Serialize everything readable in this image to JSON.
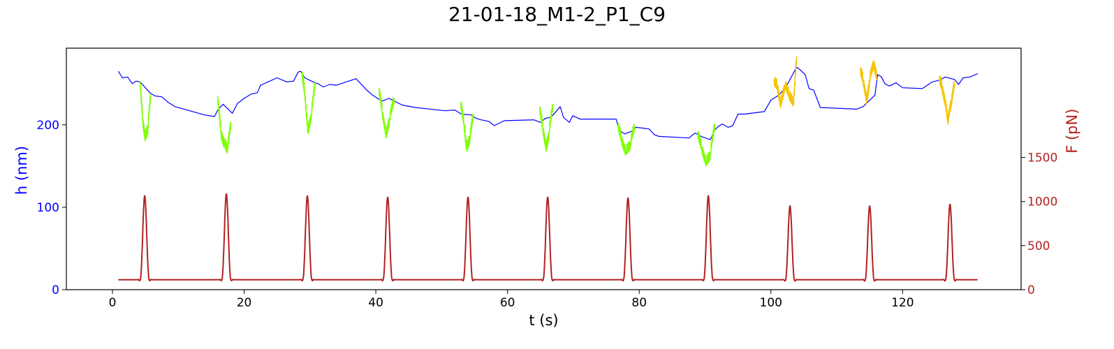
{
  "chart_data": {
    "type": "line",
    "title": "21-01-18_M1-2_P1_C9",
    "xlabel": "t (s)",
    "ylabel_left": "h (nm)",
    "ylabel_right": "F (pN)",
    "xlim": [
      -7,
      138
    ],
    "ylim_left": [
      0,
      293
    ],
    "ylim_right": [
      0,
      2740
    ],
    "x_ticks": [
      0,
      20,
      40,
      60,
      80,
      100,
      120
    ],
    "y_ticks_left": [
      0,
      100,
      200
    ],
    "y_ticks_right": [
      0,
      500,
      1000,
      1500
    ],
    "grid": false,
    "colors": {
      "height": "#0000ff",
      "height_green": "#7fff00",
      "height_yellow": "#f5c400",
      "force": "#b22222",
      "left_axis": "#0000ff",
      "right_axis": "#b22222"
    },
    "series": [
      {
        "key": "h_blue",
        "color": "#0000ff",
        "x": [
          0.9,
          1.5,
          2.3,
          3.0,
          3.6,
          4.2,
          5.8,
          6.5,
          7.5,
          8.5,
          9.5,
          14.0,
          15.5,
          16.0,
          16.8,
          18.2,
          19.0,
          20.0,
          21.0,
          22.0,
          22.5,
          25.0,
          26.5,
          27.5,
          28.2,
          28.6,
          29.2,
          30.5,
          31.2,
          32.0,
          33.0,
          34.0,
          37.0,
          38.5,
          39.5,
          40.5,
          41.0,
          42.0,
          42.8,
          44.0,
          46.0,
          50.5,
          52.0,
          53.0,
          54.5,
          55.2,
          56.0,
          57.2,
          58.0,
          59.5,
          64.0,
          65.0,
          65.8,
          66.6,
          68.0,
          68.5,
          69.4,
          69.9,
          71.0,
          76.5,
          77.0,
          77.8,
          78.8,
          79.5,
          80.5,
          81.5,
          82.3,
          83.0,
          87.6,
          88.0,
          88.5,
          89.4,
          90.8,
          91.5,
          92.0,
          92.6,
          93.5,
          94.2,
          95.0,
          96.0,
          99.0,
          100.0,
          101.2,
          102.3,
          103.9,
          104.4,
          105.2,
          105.8,
          106.5,
          107.5,
          113.0,
          114.0,
          115.8,
          116.2,
          116.8,
          117.3,
          118.0,
          119.0,
          120.0,
          123.0,
          124.5,
          125.5,
          126.5,
          127.9,
          128.5,
          129.2,
          130.2,
          131.4
        ],
        "y": [
          265,
          257,
          258,
          250,
          253,
          252,
          238,
          235,
          234,
          227,
          222,
          212,
          210,
          218,
          225,
          214,
          226,
          232,
          237,
          239,
          248,
          257,
          252,
          253,
          264,
          265,
          257,
          252,
          250,
          246,
          249,
          248,
          256,
          243,
          236,
          231,
          229,
          232,
          229,
          224,
          221,
          217,
          218,
          213,
          212,
          208,
          206,
          204,
          199,
          205,
          206,
          203,
          208,
          209,
          222,
          209,
          203,
          211,
          207,
          207,
          193,
          189,
          192,
          197,
          196,
          195,
          188,
          186,
          184,
          187,
          190,
          186,
          182,
          194,
          198,
          201,
          197,
          199,
          213,
          213,
          216,
          230,
          236,
          246,
          270,
          267,
          261,
          244,
          242,
          221,
          219,
          222,
          236,
          261,
          258,
          250,
          247,
          251,
          245,
          244,
          252,
          254,
          258,
          255,
          249,
          257,
          258,
          262
        ]
      },
      {
        "key": "h_green",
        "color": "#7fff00",
        "segments": [
          {
            "x": [
              4.2,
              4.6,
              5.0,
              5.4,
              5.8
            ],
            "y": [
              253,
              205,
              185,
              197,
              237
            ]
          },
          {
            "x": [
              16.0,
              16.5,
              17.0,
              17.5,
              18.0
            ],
            "y": [
              235,
              190,
              178,
              172,
              203
            ]
          },
          {
            "x": [
              28.8,
              29.2,
              29.7,
              30.2,
              30.8
            ],
            "y": [
              264,
              240,
              192,
              212,
              252
            ]
          },
          {
            "x": [
              40.5,
              41.0,
              41.6,
              42.1,
              42.8
            ],
            "y": [
              245,
              215,
              188,
              208,
              232
            ]
          },
          {
            "x": [
              52.9,
              53.4,
              53.8,
              54.3,
              54.8
            ],
            "y": [
              228,
              201,
              172,
              185,
              212
            ]
          },
          {
            "x": [
              64.9,
              65.4,
              65.9,
              66.3,
              66.9
            ],
            "y": [
              222,
              195,
              172,
              190,
              225
            ]
          },
          {
            "x": [
              76.8,
              77.3,
              78.0,
              78.7,
              79.3
            ],
            "y": [
              201,
              183,
              168,
              178,
              199
            ]
          },
          {
            "x": [
              88.9,
              89.5,
              90.2,
              90.8,
              91.5
            ],
            "y": [
              192,
              172,
              155,
              165,
              201
            ]
          }
        ]
      },
      {
        "key": "h_yellow",
        "color": "#f5c400",
        "segments": [
          {
            "x": [
              100.5,
              101.0,
              101.5,
              102.1,
              102.8,
              103.4,
              103.9
            ],
            "y": [
              255,
              247,
              225,
              248,
              237,
              225,
              283
            ]
          },
          {
            "x": [
              113.6,
              114.0,
              114.6,
              115.0,
              115.6,
              116.1
            ],
            "y": [
              268,
              255,
              230,
              255,
              275,
              256
            ]
          },
          {
            "x": [
              125.6,
              126.0,
              126.5,
              126.9,
              127.4,
              127.9
            ],
            "y": [
              258,
              246,
              228,
              205,
              228,
              250
            ]
          }
        ]
      },
      {
        "key": "force",
        "color": "#b22222",
        "baseline": 113,
        "peak_width": 0.62,
        "peaks": [
          {
            "x": 4.9,
            "value": 1065
          },
          {
            "x": 17.3,
            "value": 1085
          },
          {
            "x": 29.6,
            "value": 1065
          },
          {
            "x": 41.8,
            "value": 1050
          },
          {
            "x": 54.0,
            "value": 1050
          },
          {
            "x": 66.1,
            "value": 1050
          },
          {
            "x": 78.3,
            "value": 1040
          },
          {
            "x": 90.5,
            "value": 1065
          },
          {
            "x": 102.9,
            "value": 950
          },
          {
            "x": 115.0,
            "value": 950
          },
          {
            "x": 127.2,
            "value": 970
          }
        ],
        "x_range": [
          0.9,
          131.4
        ]
      }
    ]
  }
}
